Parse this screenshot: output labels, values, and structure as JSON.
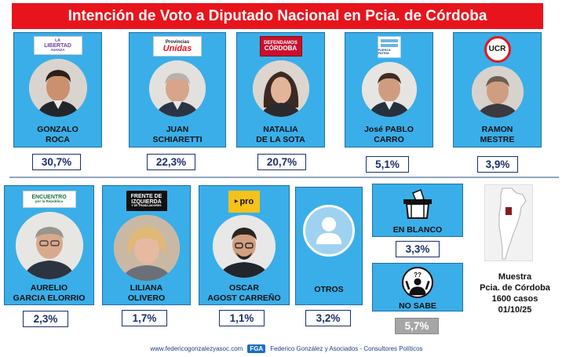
{
  "title": "Intención de Voto a Diputado Nacional en Pcia. de Córdoba",
  "chart_data": {
    "type": "bar",
    "title": "Intención de Voto a Diputado Nacional en Pcia. de Córdoba",
    "unit": "%",
    "series": [
      {
        "name": "Intención de voto",
        "values": [
          30.7,
          22.3,
          20.7,
          5.1,
          3.9,
          2.3,
          1.7,
          1.1,
          3.2,
          3.3,
          5.7
        ]
      }
    ],
    "categories": [
      "GONZALO ROCA",
      "JUAN SCHIARETTI",
      "NATALIA DE LA SOTA",
      "José PABLO CARRO",
      "RAMON MESTRE",
      "AURELIO GARCIA ELORRIO",
      "LILIANA OLIVERO",
      "OSCAR AGOST CARREÑO",
      "OTROS",
      "EN BLANCO",
      "NO SABE"
    ]
  },
  "candidates": [
    {
      "line1": "GONZALO",
      "line2": "ROCA",
      "pct": "30,7%",
      "party": {
        "main": "LIBERTAD",
        "sub": "AVANZA",
        "pre": "LA"
      }
    },
    {
      "line1": "JUAN",
      "line2": "SCHIARETTI",
      "pct": "22,3%",
      "party": {
        "pre": "Provincias",
        "main": "Unidas"
      }
    },
    {
      "line1": "NATALIA",
      "line2": "DE LA SOTA",
      "pct": "20,7%",
      "party": {
        "pre": "DEFENDAMOS",
        "main": "CÓRDOBA"
      }
    },
    {
      "line1": "José PABLO",
      "line2": "CARRO",
      "pct": "5,1%",
      "party": {
        "main": "FUERZA PATRIA"
      }
    },
    {
      "line1": "RAMON",
      "line2": "MESTRE",
      "pct": "3,9%",
      "party": {
        "main": "UCR"
      }
    },
    {
      "line1": "AURELIO",
      "line2": "GARCIA ELORRIO",
      "pct": "2,3%",
      "party": {
        "main": "ENCUENTRO",
        "sub": "por la República"
      }
    },
    {
      "line1": "LILIANA",
      "line2": "OLIVERO",
      "pct": "1,7%",
      "party": {
        "main": "FRENTE DE",
        "sub": "IZQUIERDA",
        "pre": "Y DE TRABAJADORES"
      }
    },
    {
      "line1": "OSCAR",
      "line2": "AGOST CARREÑO",
      "pct": "1,1%",
      "party": {
        "main": "pro"
      }
    }
  ],
  "otros": {
    "label": "OTROS",
    "pct": "3,2%"
  },
  "en_blanco": {
    "label": "EN BLANCO",
    "pct": "3,3%"
  },
  "no_sabe": {
    "label": "NO SABE",
    "pct": "5,7%",
    "symbol": "??"
  },
  "muestra": {
    "line1": "Muestra",
    "line2": "Pcia. de Córdoba",
    "line3": "1600 casos",
    "line4": "01/10/25"
  },
  "footer": {
    "website": "www.federicogonzalezyasoc.com",
    "logo": "FGA",
    "company": "Federico González y Asociados - Consultores Políticos"
  },
  "colors": {
    "card": "#3aaee8",
    "title_bg": "#e8141c",
    "pct_text": "#1a2f6b",
    "no_sabe_bg": "#a6a6a6"
  }
}
